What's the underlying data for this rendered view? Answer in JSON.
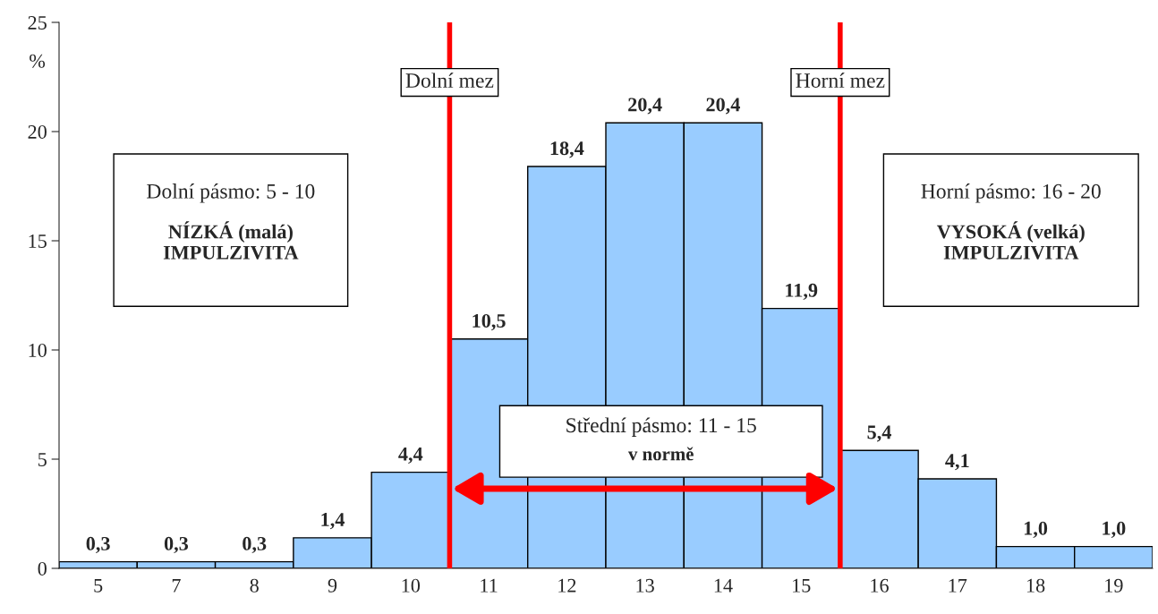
{
  "chart_data": {
    "type": "bar",
    "ylabel": "%",
    "categories": [
      "5",
      "7",
      "8",
      "9",
      "10",
      "11",
      "12",
      "13",
      "14",
      "15",
      "16",
      "17",
      "18",
      "19"
    ],
    "values": [
      0.3,
      0.3,
      0.3,
      1.4,
      4.4,
      10.5,
      18.4,
      20.4,
      20.4,
      11.9,
      5.4,
      4.1,
      1.0,
      1.0
    ],
    "value_labels": [
      "0,3",
      "0,3",
      "0,3",
      "1,4",
      "4,4",
      "10,5",
      "18,4",
      "20,4",
      "20,4",
      "11,9",
      "5,4",
      "4,1",
      "1,0",
      "1,0"
    ],
    "color": "#99ccff",
    "ylim": [
      0,
      25
    ],
    "yticks": [
      0,
      5,
      10,
      15,
      20,
      25
    ],
    "grid": false,
    "legend": false,
    "annotations": [
      "Dolní mez",
      "Horní mez",
      "Dolní pásmo: 5 - 10",
      "NÍZKÁ (malá)\nIMPULZIVITA",
      "Horní pásmo: 16 - 20",
      "VYSOKÁ (velká)\nIMPULZIVITA",
      "Střední pásmo: 11 - 15",
      "v normě"
    ]
  }
}
